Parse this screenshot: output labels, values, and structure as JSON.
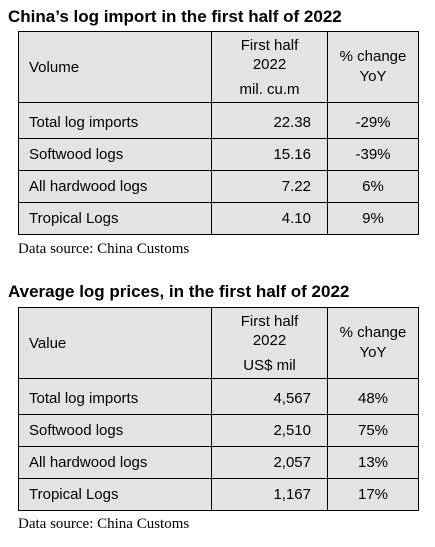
{
  "tables": [
    {
      "title": "China’s log import in the first half of 2022",
      "header": {
        "col1": "Volume",
        "col2_line1": "First half",
        "col2_line2": "2022",
        "col2_unit": "mil. cu.m",
        "col3_line1": "% change",
        "col3_line2": "YoY"
      },
      "rows": [
        {
          "label": "Total log imports",
          "value": "22.38",
          "change": "-29%"
        },
        {
          "label": "Softwood logs",
          "value": "15.16",
          "change": "-39%"
        },
        {
          "label": "All hardwood logs",
          "value": "7.22",
          "change": "6%"
        },
        {
          "label": "Tropical Logs",
          "value": "4.10",
          "change": "9%"
        }
      ],
      "source": "Data source: China Customs"
    },
    {
      "title": "Average log prices, in the first half of 2022",
      "header": {
        "col1": "Value",
        "col2_line1": "First half",
        "col2_line2": "2022",
        "col2_unit": "US$ mil",
        "col3_line1": "% change",
        "col3_line2": "YoY"
      },
      "rows": [
        {
          "label": "Total log imports",
          "value": "4,567",
          "change": "48%"
        },
        {
          "label": "Softwood logs",
          "value": "2,510",
          "change": "75%"
        },
        {
          "label": "All hardwood logs",
          "value": "2,057",
          "change": "13%"
        },
        {
          "label": "Tropical Logs",
          "value": "1,167",
          "change": "17%"
        }
      ],
      "source": "Data source: China Customs"
    }
  ]
}
